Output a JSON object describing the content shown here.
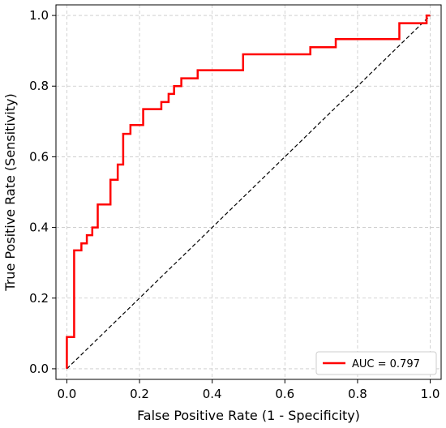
{
  "chart_data": {
    "type": "line",
    "title": "",
    "xlabel": "False Positive Rate (1 - Specificity)",
    "ylabel": "True Positive Rate (Sensitivity)",
    "xlim": [
      -0.03,
      1.03
    ],
    "ylim": [
      -0.03,
      1.03
    ],
    "xticks": [
      0.0,
      0.2,
      0.4,
      0.6,
      0.8,
      1.0
    ],
    "yticks": [
      0.0,
      0.2,
      0.4,
      0.6,
      0.8,
      1.0
    ],
    "xtick_labels": [
      "0.0",
      "0.2",
      "0.4",
      "0.6",
      "0.8",
      "1.0"
    ],
    "ytick_labels": [
      "0.0",
      "0.2",
      "0.4",
      "0.6",
      "0.8",
      "1.0"
    ],
    "grid": true,
    "legend_position": "lower-right",
    "series": [
      {
        "name": "AUC = 0.797",
        "color": "#ff0000",
        "style": "solid",
        "x": [
          0.0,
          0.0,
          0.0,
          0.02,
          0.02,
          0.04,
          0.04,
          0.055,
          0.055,
          0.07,
          0.07,
          0.085,
          0.085,
          0.12,
          0.12,
          0.14,
          0.14,
          0.155,
          0.155,
          0.175,
          0.175,
          0.21,
          0.21,
          0.26,
          0.26,
          0.28,
          0.28,
          0.295,
          0.295,
          0.315,
          0.315,
          0.36,
          0.36,
          0.485,
          0.485,
          0.67,
          0.67,
          0.74,
          0.74,
          0.915,
          0.915,
          0.99,
          0.99,
          1.0
        ],
        "y": [
          0.0,
          0.0,
          0.09,
          0.09,
          0.335,
          0.335,
          0.355,
          0.355,
          0.378,
          0.378,
          0.4,
          0.4,
          0.465,
          0.465,
          0.535,
          0.535,
          0.578,
          0.578,
          0.665,
          0.665,
          0.69,
          0.69,
          0.735,
          0.735,
          0.755,
          0.755,
          0.778,
          0.778,
          0.8,
          0.8,
          0.822,
          0.822,
          0.845,
          0.845,
          0.89,
          0.89,
          0.91,
          0.91,
          0.933,
          0.933,
          0.978,
          0.978,
          1.0,
          1.0
        ]
      },
      {
        "name": "",
        "color": "#000000",
        "style": "dashed",
        "x": [
          0.0,
          1.0
        ],
        "y": [
          0.0,
          1.0
        ]
      }
    ],
    "legend": {
      "entries": [
        "AUC = 0.797"
      ]
    }
  }
}
